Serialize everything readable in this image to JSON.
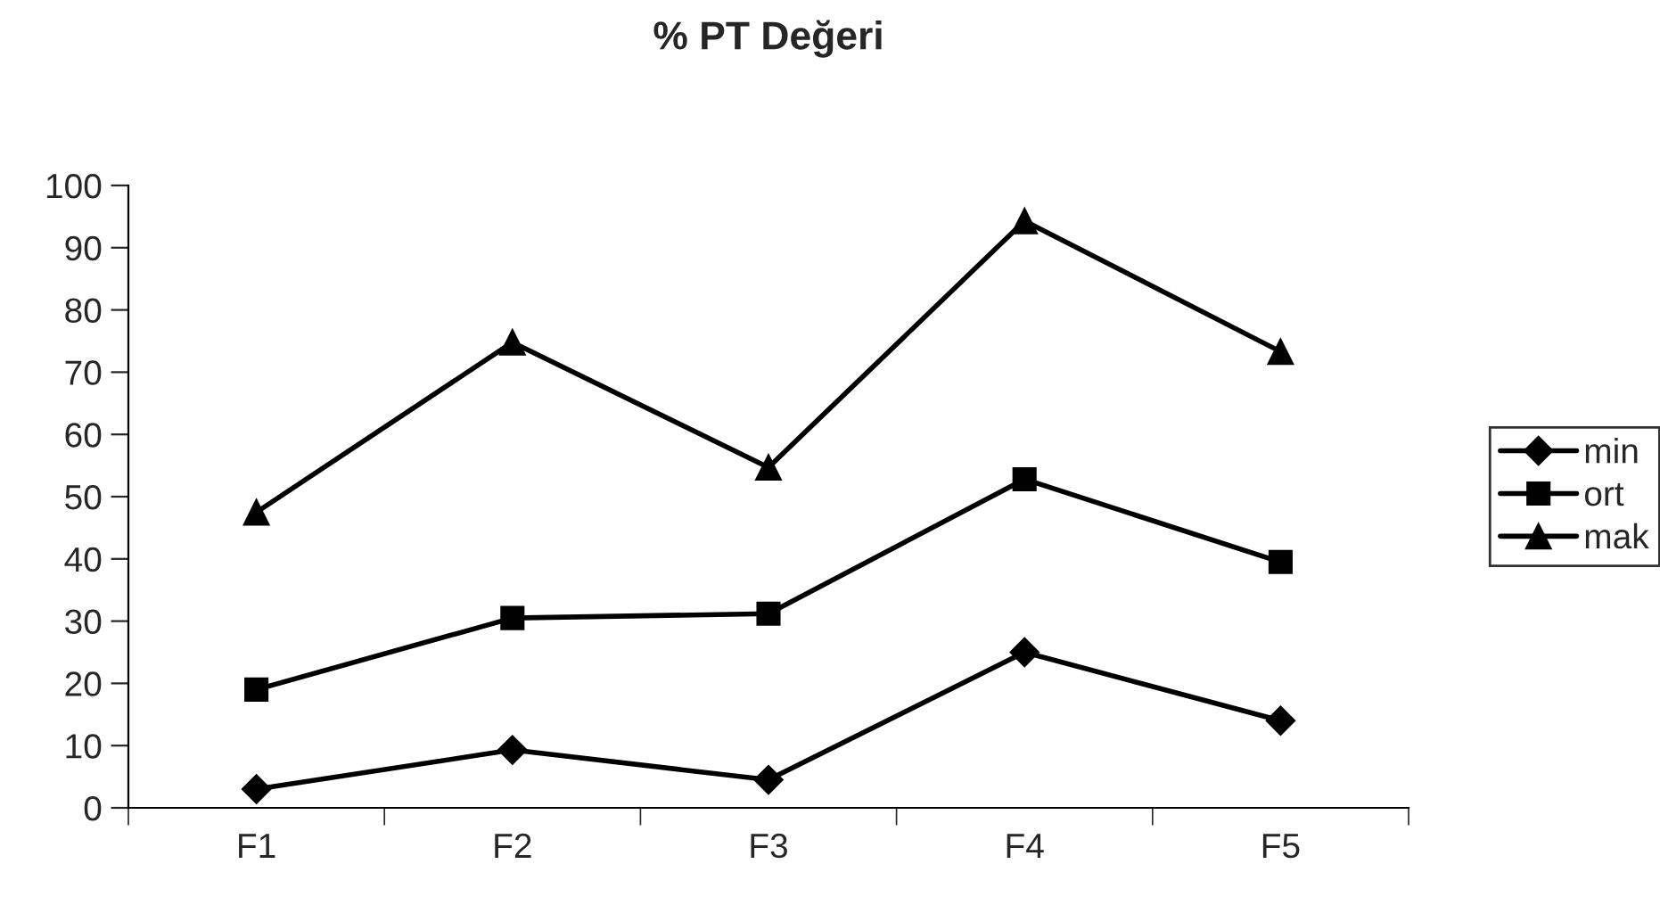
{
  "chart_data": {
    "type": "line",
    "title": "% PT Değeri",
    "categories": [
      "F1",
      "F2",
      "F3",
      "F4",
      "F5"
    ],
    "series": [
      {
        "name": "min",
        "color": "#000000",
        "marker": "diamond",
        "values": [
          3,
          9.3,
          4.5,
          25,
          14
        ]
      },
      {
        "name": "ort",
        "color": "#000000",
        "marker": "square",
        "values": [
          19,
          30.5,
          31.2,
          52.8,
          39.5
        ]
      },
      {
        "name": "mak",
        "color": "#000000",
        "marker": "triangle",
        "values": [
          47.5,
          74.8,
          54.7,
          94.3,
          73.3
        ]
      }
    ],
    "ylim": [
      0,
      100
    ],
    "yticks": [
      0,
      10,
      20,
      30,
      40,
      50,
      60,
      70,
      80,
      90,
      100
    ],
    "grid": false,
    "legend": "right",
    "line_style": "solid"
  }
}
